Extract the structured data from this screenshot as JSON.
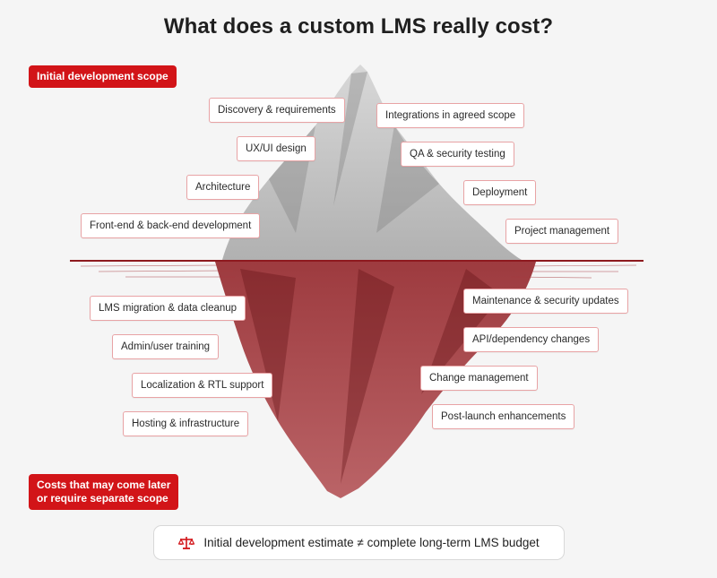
{
  "title": "What does a custom LMS really cost?",
  "badges": {
    "above": "Initial development scope",
    "below_line1": "Costs that may come later",
    "below_line2": "or require separate scope"
  },
  "above_items": [
    "Discovery & requirements",
    "Integrations in agreed scope",
    "UX/UI design",
    "QA & security testing",
    "Architecture",
    "Deployment",
    "Front-end & back-end development",
    "Project management"
  ],
  "below_items": [
    "LMS migration & data cleanup",
    "Maintenance & security updates",
    "API/dependency changes",
    "Admin/user training",
    "Localization & RTL support",
    "Change management",
    "Hosting & infrastructure",
    "Post-launch enhancements"
  ],
  "footer": {
    "icon": "balance-scale-icon",
    "text": "Initial development estimate ≠ complete long-term LMS budget"
  },
  "colors": {
    "accent": "#d21418",
    "underwater": "#8e1a1f",
    "label_border": "#e8a3a5",
    "background": "#f5f5f5"
  }
}
